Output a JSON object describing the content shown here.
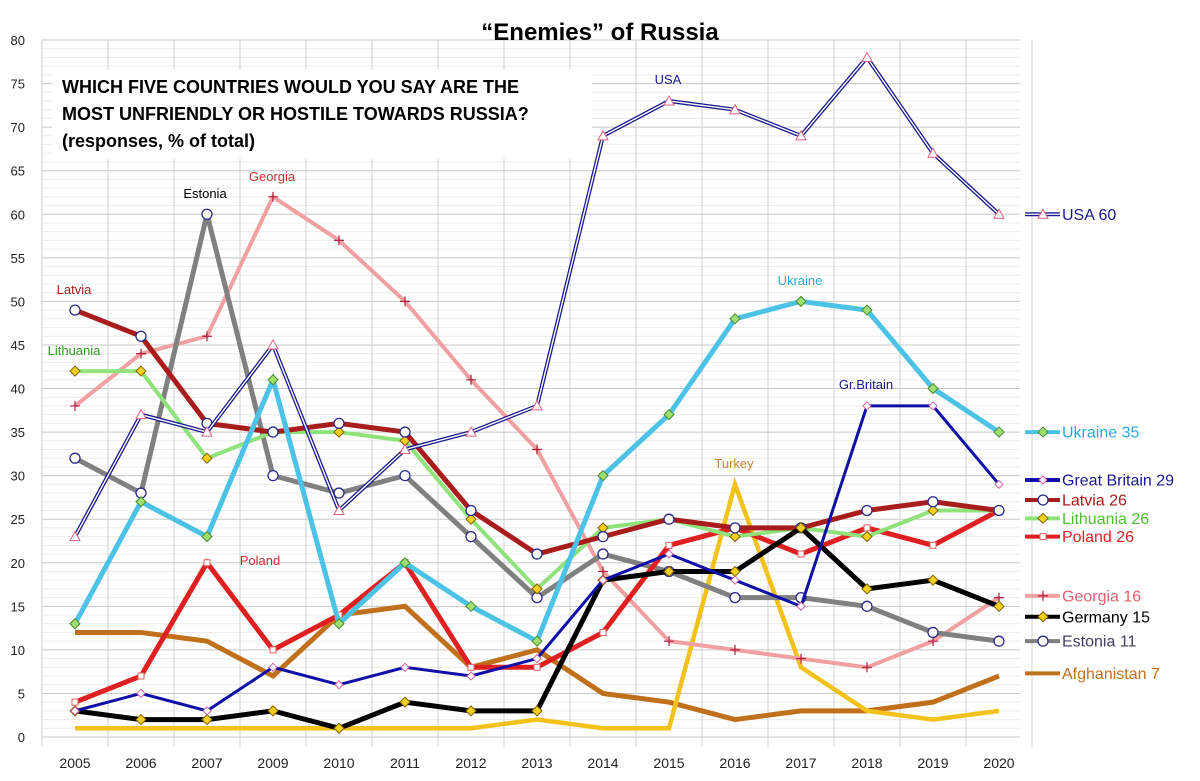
{
  "chart_data": {
    "type": "line",
    "title": "“Enemies” of Russia",
    "subtitle_lines": [
      "WHICH FIVE COUNTRIES WOULD YOU SAY ARE THE",
      "MOST UNFRIENDLY OR HOSTILE TOWARDS RUSSIA?",
      "(responses, % of total)"
    ],
    "categories": [
      "2005",
      "2006",
      "2007",
      "2009",
      "2010",
      "2011",
      "2012",
      "2013",
      "2014",
      "2015",
      "2016",
      "2017",
      "2018",
      "2019",
      "2020"
    ],
    "ylim": [
      0,
      80
    ],
    "yticks": [
      0,
      5,
      10,
      15,
      20,
      25,
      30,
      35,
      40,
      45,
      50,
      55,
      60,
      65,
      70,
      75,
      80
    ],
    "grid": true,
    "legend_placement": "right",
    "series": [
      {
        "name": "USA",
        "legend": "USA 60",
        "annotation": "USA",
        "color": "#1a1a8c",
        "marker": "triangle",
        "values": [
          23,
          37,
          35,
          45,
          26,
          33,
          35,
          38,
          69,
          73,
          72,
          69,
          78,
          67,
          60
        ]
      },
      {
        "name": "Ukraine",
        "legend": "Ukraine 35",
        "annotation": "Ukraine",
        "color": "#4cc3e6",
        "marker": "diamond",
        "values": [
          13,
          27,
          23,
          41,
          13,
          20,
          15,
          11,
          30,
          37,
          48,
          50,
          49,
          40,
          35
        ]
      },
      {
        "name": "Great Britain",
        "legend": "Great Britain 29",
        "annotation": "Gr.Britain",
        "color": "#1010a8",
        "marker": "diamond-small",
        "values": [
          3,
          5,
          3,
          8,
          6,
          8,
          7,
          9,
          18,
          21,
          18,
          15,
          38,
          38,
          29
        ]
      },
      {
        "name": "Latvia",
        "legend": "Latvia 26",
        "annotation": "Latvia",
        "color": "#a81c1c",
        "marker": "circle",
        "values": [
          49,
          46,
          36,
          35,
          36,
          35,
          26,
          21,
          23,
          25,
          24,
          24,
          26,
          27,
          26
        ]
      },
      {
        "name": "Lithuania",
        "legend": "Lithuania 26",
        "annotation": "Lithuania",
        "color": "#8fe37a",
        "marker": "diamond-yellow",
        "values": [
          42,
          42,
          32,
          35,
          35,
          34,
          25,
          17,
          24,
          25,
          23,
          24,
          23,
          26,
          26
        ]
      },
      {
        "name": "Poland",
        "legend": "Poland 26",
        "annotation": "Poland",
        "color": "#e02020",
        "marker": "square",
        "values": [
          4,
          7,
          20,
          10,
          14,
          20,
          8,
          8,
          12,
          22,
          24,
          21,
          24,
          22,
          26
        ]
      },
      {
        "name": "Georgia",
        "legend": "Georgia 16",
        "annotation": "Georgia",
        "color": "#f0a0a0",
        "marker": "plus",
        "values": [
          38,
          44,
          46,
          62,
          57,
          50,
          41,
          33,
          19,
          11,
          10,
          9,
          8,
          11,
          16
        ]
      },
      {
        "name": "Germany",
        "legend": "Germany 15",
        "annotation": "",
        "color": "#000000",
        "marker": "diamond-yellow",
        "values": [
          3,
          2,
          2,
          3,
          1,
          4,
          3,
          3,
          18,
          19,
          19,
          24,
          17,
          18,
          15
        ]
      },
      {
        "name": "Estonia",
        "legend": "Estonia 11",
        "annotation": "Estonia",
        "color": "#808080",
        "marker": "circle",
        "values": [
          32,
          28,
          60,
          30,
          28,
          30,
          23,
          16,
          21,
          19,
          16,
          16,
          15,
          12,
          11
        ]
      },
      {
        "name": "Afghanistan",
        "legend": "Afghanistan 7",
        "annotation": "",
        "color": "#c0701a",
        "marker": "none",
        "values": [
          12,
          12,
          11,
          7,
          14,
          15,
          8,
          10,
          5,
          4,
          2,
          3,
          3,
          4,
          7
        ]
      },
      {
        "name": "Turkey",
        "legend": "",
        "annotation": "Turkey",
        "color": "#f2c21b",
        "marker": "none",
        "values": [
          1,
          1,
          1,
          1,
          1,
          1,
          1,
          2,
          1,
          1,
          29,
          8,
          3,
          2,
          3
        ]
      }
    ]
  }
}
